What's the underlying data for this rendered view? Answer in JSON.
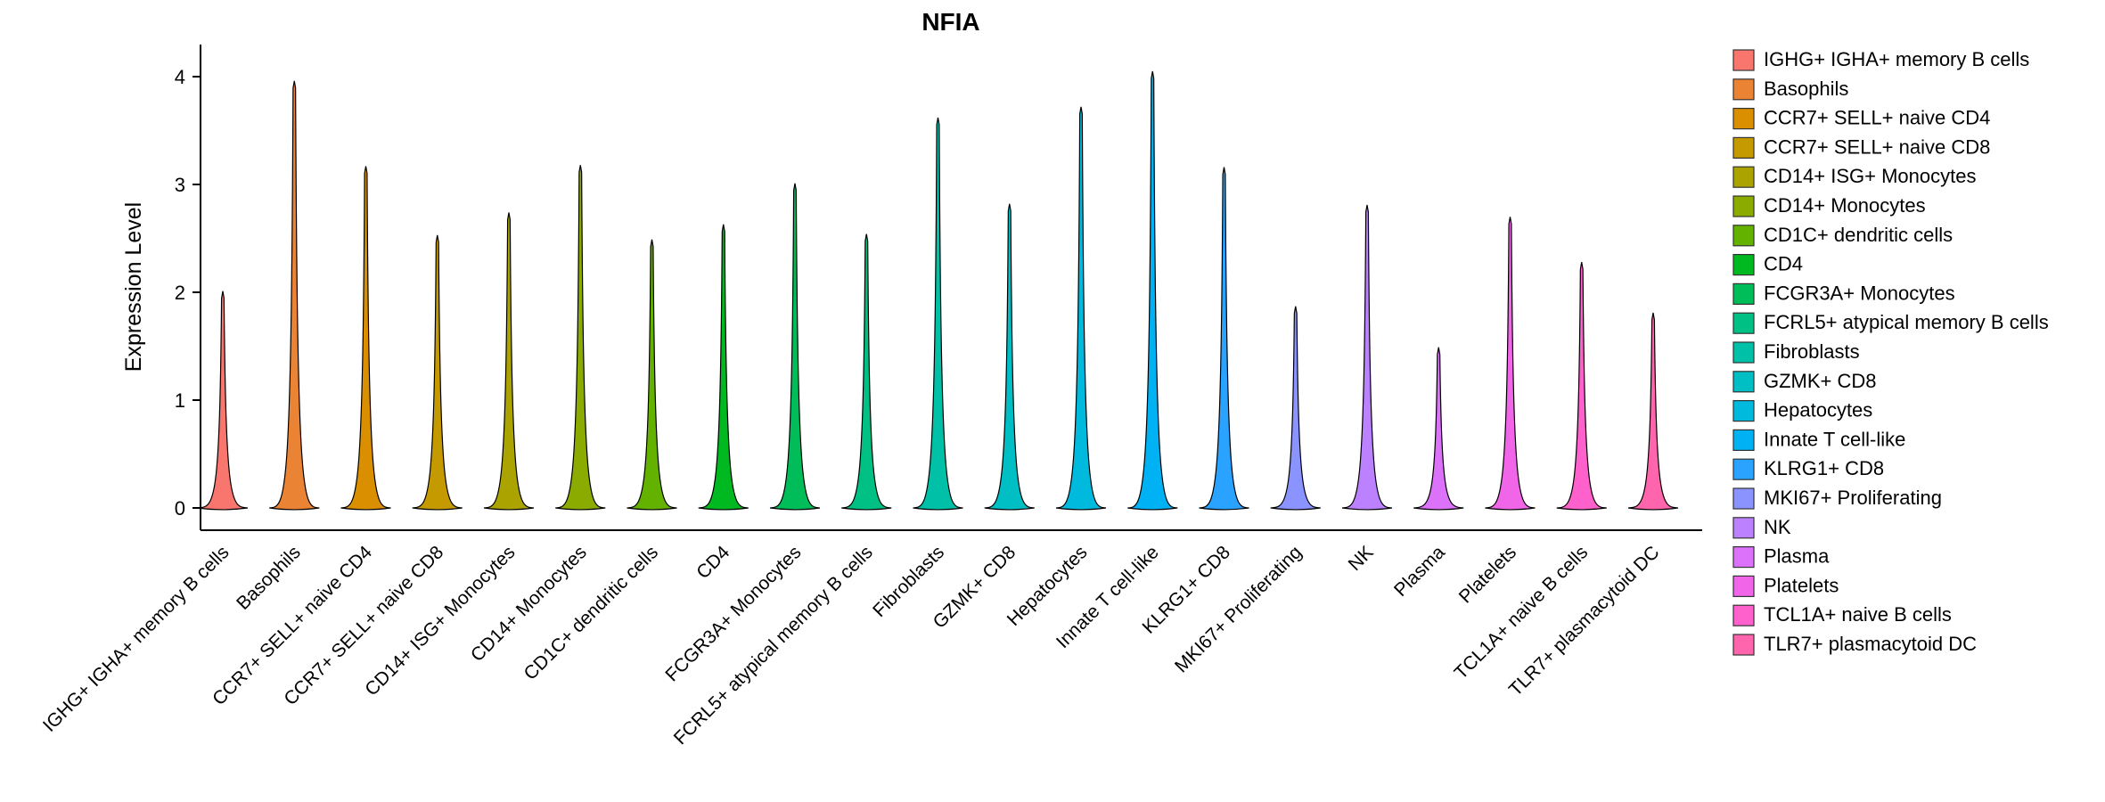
{
  "title": "NFIA",
  "ylabel": "Expression Level",
  "chart_data": {
    "type": "violin",
    "title": "NFIA",
    "xlabel": "",
    "ylabel": "Expression Level",
    "legend_position": "right",
    "grid": false,
    "yticks": [
      0,
      1,
      2,
      3,
      4
    ],
    "ylim": [
      -0.2,
      4.3
    ],
    "categories": [
      "IGHG+ IGHA+ memory B cells",
      "Basophils",
      "CCR7+ SELL+ naive CD4",
      "CCR7+ SELL+ naive CD8",
      "CD14+ ISG+ Monocytes",
      "CD14+ Monocytes",
      "CD1C+ dendritic cells",
      "CD4",
      "FCGR3A+ Monocytes",
      "FCRL5+ atypical memory B cells",
      "Fibroblasts",
      "GZMK+ CD8",
      "Hepatocytes",
      "Innate T cell-like",
      "KLRG1+ CD8",
      "MKI67+ Proliferating",
      "NK",
      "Plasma",
      "Platelets",
      "TCL1A+ naive B cells",
      "TLR7+ plasmacytoid DC"
    ],
    "legend_labels": [
      " IGHG+ IGHA+ memory B cells",
      "Basophils",
      "CCR7+ SELL+ naive CD4",
      "CCR7+ SELL+ naive CD8",
      "CD14+ ISG+ Monocytes",
      "CD14+ Monocytes",
      "CD1C+ dendritic cells",
      "CD4",
      "FCGR3A+ Monocytes",
      "FCRL5+ atypical memory B cells",
      "Fibroblasts",
      "GZMK+ CD8",
      "Hepatocytes",
      "Innate T cell-like",
      "KLRG1+ CD8",
      "MKI67+ Proliferating",
      "NK",
      "Plasma",
      "Platelets",
      "TCL1A+ naive B cells",
      "TLR7+ plasmacytoid DC"
    ],
    "series": [
      {
        "name": "max_expression_level",
        "values": [
          2.01,
          3.96,
          3.17,
          2.53,
          2.74,
          3.18,
          2.49,
          2.63,
          3.01,
          2.54,
          3.62,
          2.82,
          3.72,
          4.05,
          3.16,
          1.87,
          2.81,
          1.49,
          2.7,
          2.28,
          1.81
        ]
      },
      {
        "name": "baseline_expression_level",
        "values": [
          0,
          0,
          0,
          0,
          0,
          0,
          0,
          0,
          0,
          0,
          0,
          0,
          0,
          0,
          0,
          0,
          0,
          0,
          0,
          0,
          0
        ]
      }
    ],
    "colors": [
      "#F8766D",
      "#EB8335",
      "#DA8F00",
      "#C49A00",
      "#ABA300",
      "#8CAB00",
      "#64B200",
      "#00B81F",
      "#00BC59",
      "#00C083",
      "#00C1A7",
      "#00BFC4",
      "#00BADE",
      "#00B2F3",
      "#29A3FF",
      "#8B93FF",
      "#BC81FF",
      "#DC71FA",
      "#F166E8",
      "#FF61CC",
      "#FF65AC"
    ],
    "axis_color": "#000000",
    "violin_outline_color": "#000000"
  }
}
